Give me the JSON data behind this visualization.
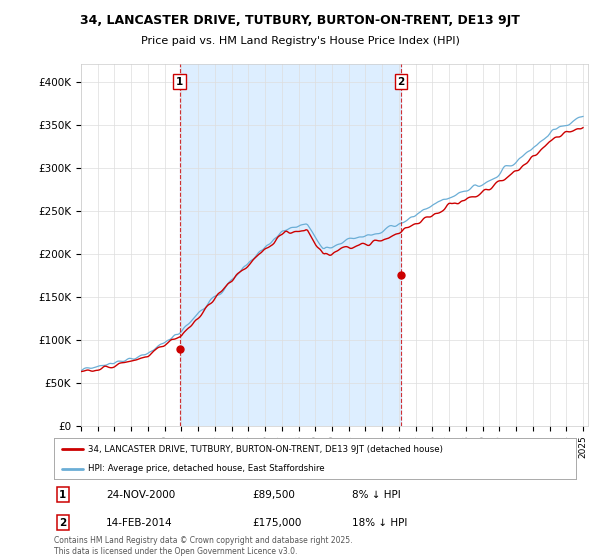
{
  "title": "34, LANCASTER DRIVE, TUTBURY, BURTON-ON-TRENT, DE13 9JT",
  "subtitle": "Price paid vs. HM Land Registry's House Price Index (HPI)",
  "ylim": [
    0,
    420000
  ],
  "yticks": [
    0,
    50000,
    100000,
    150000,
    200000,
    250000,
    300000,
    350000,
    400000
  ],
  "ytick_labels": [
    "£0",
    "£50K",
    "£100K",
    "£150K",
    "£200K",
    "£250K",
    "£300K",
    "£350K",
    "£400K"
  ],
  "house_color": "#cc0000",
  "hpi_color": "#6baed6",
  "shade_color": "#ddeeff",
  "marker1_year": 2000.9,
  "marker1_value": 89500,
  "marker2_year": 2014.12,
  "marker2_value": 175000,
  "annotation1_date": "24-NOV-2000",
  "annotation1_price": "£89,500",
  "annotation1_pct": "8% ↓ HPI",
  "annotation2_date": "14-FEB-2014",
  "annotation2_price": "£175,000",
  "annotation2_pct": "18% ↓ HPI",
  "legend_house": "34, LANCASTER DRIVE, TUTBURY, BURTON-ON-TRENT, DE13 9JT (detached house)",
  "legend_hpi": "HPI: Average price, detached house, East Staffordshire",
  "footer": "Contains HM Land Registry data © Crown copyright and database right 2025.\nThis data is licensed under the Open Government Licence v3.0.",
  "background_color": "#ffffff",
  "grid_color": "#dddddd",
  "title_fontsize": 9,
  "subtitle_fontsize": 8
}
